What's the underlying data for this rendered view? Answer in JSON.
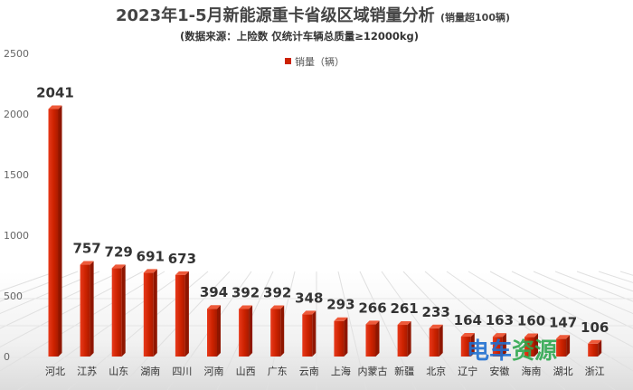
{
  "chart_data": {
    "type": "bar",
    "title": "2023年1-5月新能源重卡省级区域销量分析",
    "title_note": "(销量超100辆)",
    "subtitle": "(数据来源：上险数  仅统计车辆总质量≥12000kg)",
    "categories": [
      "河北",
      "江苏",
      "山东",
      "湖南",
      "四川",
      "河南",
      "山西",
      "广东",
      "云南",
      "上海",
      "内蒙古",
      "新疆",
      "北京",
      "辽宁",
      "安徽",
      "海南",
      "湖北",
      "浙江"
    ],
    "series": [
      {
        "name": "销量（辆）",
        "values": [
          2041,
          757,
          729,
          691,
          673,
          394,
          392,
          392,
          348,
          293,
          266,
          261,
          233,
          164,
          163,
          160,
          147,
          106
        ]
      }
    ],
    "yticks": [
      0,
      500,
      1000,
      1500,
      2000,
      2500
    ],
    "ylim": [
      0,
      2500
    ],
    "legend_position": "top-center",
    "bar_color": "#cc2200",
    "grid": false
  },
  "watermark": {
    "text": "电车资源",
    "colors": [
      "#1f6fd1",
      "#2fa84f"
    ]
  }
}
